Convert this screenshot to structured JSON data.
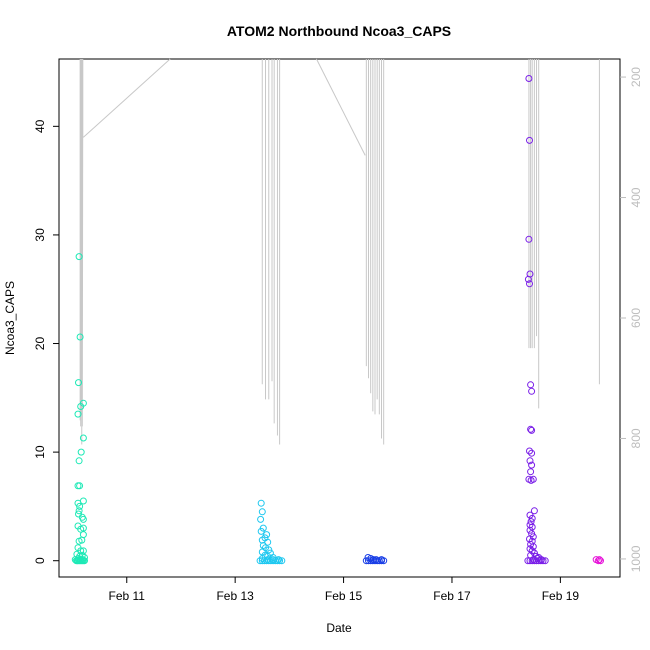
{
  "chart_data": {
    "type": "scatter",
    "title": "ATOM2 Northbound Ncoa3_CAPS",
    "xlabel": "Date",
    "ylabel": "Ncoa3_CAPS",
    "x_ticks": [
      "Feb 11",
      "Feb 13",
      "Feb 15",
      "Feb 17",
      "Feb 19"
    ],
    "y_ticks": [
      0,
      10,
      20,
      30,
      40
    ],
    "y2_ticks": [
      200,
      400,
      600,
      800,
      1000
    ],
    "xlim": [
      9.75,
      20.1
    ],
    "ylim": [
      -1.5,
      46.2
    ],
    "y2lim": [
      1030,
      170
    ],
    "y2_reversed": true,
    "grid": false,
    "legend": "none",
    "depth_profile_color": "#c8c8c8",
    "series": [
      {
        "color": "#1de9b6",
        "points": [
          [
            10.12,
            28.0
          ],
          [
            10.14,
            20.6
          ],
          [
            10.11,
            16.4
          ],
          [
            10.1,
            13.5
          ],
          [
            10.15,
            14.2
          ],
          [
            10.2,
            14.5
          ],
          [
            10.2,
            11.3
          ],
          [
            10.16,
            10.0
          ],
          [
            10.12,
            9.2
          ],
          [
            10.1,
            6.9
          ],
          [
            10.13,
            6.9
          ],
          [
            10.1,
            5.3
          ],
          [
            10.13,
            5.0
          ],
          [
            10.12,
            4.6
          ],
          [
            10.11,
            4.3
          ],
          [
            10.2,
            5.5
          ],
          [
            10.18,
            4.0
          ],
          [
            10.2,
            3.8
          ],
          [
            10.1,
            3.2
          ],
          [
            10.15,
            2.9
          ],
          [
            10.2,
            3.0
          ],
          [
            10.2,
            2.4
          ],
          [
            10.12,
            1.8
          ],
          [
            10.17,
            1.9
          ],
          [
            10.1,
            1.2
          ],
          [
            10.15,
            0.9
          ],
          [
            10.2,
            0.9
          ],
          [
            10.08,
            0.6
          ],
          [
            10.13,
            0.4
          ],
          [
            10.18,
            0.5
          ],
          [
            10.22,
            0.3
          ],
          [
            10.05,
            0.1
          ],
          [
            10.07,
            0.0
          ],
          [
            10.09,
            0.0
          ],
          [
            10.1,
            0.0
          ],
          [
            10.12,
            0.0
          ],
          [
            10.14,
            0.0
          ],
          [
            10.16,
            0.0
          ],
          [
            10.18,
            0.0
          ],
          [
            10.2,
            0.0
          ],
          [
            10.22,
            0.0
          ],
          [
            10.11,
            0.2
          ],
          [
            10.15,
            0.1
          ],
          [
            10.19,
            0.1
          ]
        ]
      },
      {
        "color": "#1ec8f0",
        "points": [
          [
            13.48,
            5.3
          ],
          [
            13.5,
            4.5
          ],
          [
            13.47,
            3.8
          ],
          [
            13.52,
            3.0
          ],
          [
            13.48,
            2.7
          ],
          [
            13.58,
            2.4
          ],
          [
            13.55,
            2.1
          ],
          [
            13.5,
            1.9
          ],
          [
            13.6,
            1.7
          ],
          [
            13.52,
            1.4
          ],
          [
            13.56,
            1.2
          ],
          [
            13.62,
            1.0
          ],
          [
            13.5,
            0.8
          ],
          [
            13.65,
            0.7
          ],
          [
            13.55,
            0.5
          ],
          [
            13.6,
            0.4
          ],
          [
            13.7,
            0.3
          ],
          [
            13.5,
            0.2
          ],
          [
            13.46,
            0.0
          ],
          [
            13.5,
            0.0
          ],
          [
            13.54,
            0.0
          ],
          [
            13.58,
            0.0
          ],
          [
            13.62,
            0.0
          ],
          [
            13.66,
            0.0
          ],
          [
            13.7,
            0.0
          ],
          [
            13.74,
            0.0
          ],
          [
            13.78,
            0.0
          ],
          [
            13.82,
            0.0
          ],
          [
            13.86,
            0.0
          ],
          [
            13.6,
            0.1
          ],
          [
            13.7,
            0.1
          ],
          [
            13.8,
            0.1
          ]
        ]
      },
      {
        "color": "#1a3fe6",
        "points": [
          [
            15.45,
            0.3
          ],
          [
            15.5,
            0.2
          ],
          [
            15.55,
            0.1
          ],
          [
            15.42,
            0.0
          ],
          [
            15.46,
            0.0
          ],
          [
            15.5,
            0.0
          ],
          [
            15.54,
            0.0
          ],
          [
            15.58,
            0.0
          ],
          [
            15.62,
            0.0
          ],
          [
            15.66,
            0.0
          ],
          [
            15.7,
            0.0
          ],
          [
            15.74,
            0.0
          ],
          [
            15.6,
            0.1
          ],
          [
            15.7,
            0.1
          ]
        ]
      },
      {
        "color": "#7a1fe8",
        "points": [
          [
            18.42,
            44.4
          ],
          [
            18.43,
            38.7
          ],
          [
            18.42,
            29.6
          ],
          [
            18.44,
            26.4
          ],
          [
            18.41,
            25.9
          ],
          [
            18.43,
            25.5
          ],
          [
            18.45,
            16.2
          ],
          [
            18.47,
            15.6
          ],
          [
            18.45,
            12.1
          ],
          [
            18.47,
            12.0
          ],
          [
            18.43,
            10.1
          ],
          [
            18.47,
            9.9
          ],
          [
            18.44,
            9.2
          ],
          [
            18.47,
            8.8
          ],
          [
            18.45,
            8.2
          ],
          [
            18.5,
            7.5
          ],
          [
            18.42,
            7.5
          ],
          [
            18.46,
            7.4
          ],
          [
            18.52,
            4.6
          ],
          [
            18.44,
            4.2
          ],
          [
            18.48,
            3.9
          ],
          [
            18.46,
            3.6
          ],
          [
            18.44,
            3.3
          ],
          [
            18.48,
            3.1
          ],
          [
            18.44,
            2.8
          ],
          [
            18.47,
            2.5
          ],
          [
            18.5,
            2.2
          ],
          [
            18.43,
            2.0
          ],
          [
            18.48,
            1.8
          ],
          [
            18.45,
            1.5
          ],
          [
            18.5,
            1.3
          ],
          [
            18.44,
            1.1
          ],
          [
            18.48,
            0.9
          ],
          [
            18.52,
            0.7
          ],
          [
            18.45,
            0.5
          ],
          [
            18.55,
            0.4
          ],
          [
            18.6,
            0.3
          ],
          [
            18.4,
            0.0
          ],
          [
            18.44,
            0.0
          ],
          [
            18.48,
            0.0
          ],
          [
            18.52,
            0.0
          ],
          [
            18.56,
            0.0
          ],
          [
            18.6,
            0.0
          ],
          [
            18.64,
            0.0
          ],
          [
            18.68,
            0.0
          ],
          [
            18.72,
            0.0
          ],
          [
            18.5,
            0.1
          ],
          [
            18.58,
            0.2
          ],
          [
            18.65,
            0.1
          ]
        ]
      },
      {
        "color": "#e612d8",
        "points": [
          [
            19.66,
            0.1
          ],
          [
            19.7,
            0.0
          ],
          [
            19.74,
            0.0
          ],
          [
            19.72,
            0.1
          ]
        ]
      }
    ],
    "depth_profiles": [
      {
        "x": [
          10.18,
          10.18,
          10.18,
          10.19,
          10.19,
          10.2
        ],
        "depth": [
          170,
          600,
          780,
          170,
          300,
          300
        ],
        "poly": true
      },
      {
        "x": [
          10.14,
          10.14,
          10.15,
          10.15,
          10.16,
          10.16,
          10.17,
          10.17
        ],
        "depth": [
          170,
          770,
          170,
          780,
          170,
          760,
          170,
          810
        ]
      },
      {
        "x": [
          10.2,
          11.8
        ],
        "depth": [
          300,
          170
        ],
        "poly": true
      },
      {
        "x": [
          13.5,
          13.5,
          13.56,
          13.56,
          13.62,
          13.62,
          13.68,
          13.68,
          13.72,
          13.72,
          13.78,
          13.78,
          13.82,
          13.82
        ],
        "depth": [
          170,
          710,
          170,
          735,
          170,
          735,
          170,
          705,
          170,
          775,
          170,
          795,
          170,
          810
        ]
      },
      {
        "x": [
          14.5,
          15.4
        ],
        "depth": [
          170,
          330
        ],
        "poly": true
      },
      {
        "x": [
          15.42,
          15.42,
          15.46,
          15.46,
          15.5,
          15.5,
          15.54,
          15.54,
          15.58,
          15.58,
          15.62,
          15.62,
          15.66,
          15.66,
          15.7,
          15.7,
          15.74,
          15.74
        ],
        "depth": [
          170,
          680,
          170,
          700,
          170,
          725,
          170,
          755,
          170,
          760,
          170,
          735,
          170,
          760,
          170,
          800,
          170,
          810
        ]
      },
      {
        "x": [
          18.42,
          18.42,
          18.45,
          18.45,
          18.48,
          18.48,
          18.52,
          18.52,
          18.56,
          18.56,
          18.6,
          18.6
        ],
        "depth": [
          170,
          650,
          170,
          650,
          170,
          650,
          170,
          650,
          170,
          630,
          170,
          750
        ]
      },
      {
        "x": [
          19.72,
          19.72
        ],
        "depth": [
          170,
          710
        ]
      }
    ]
  }
}
